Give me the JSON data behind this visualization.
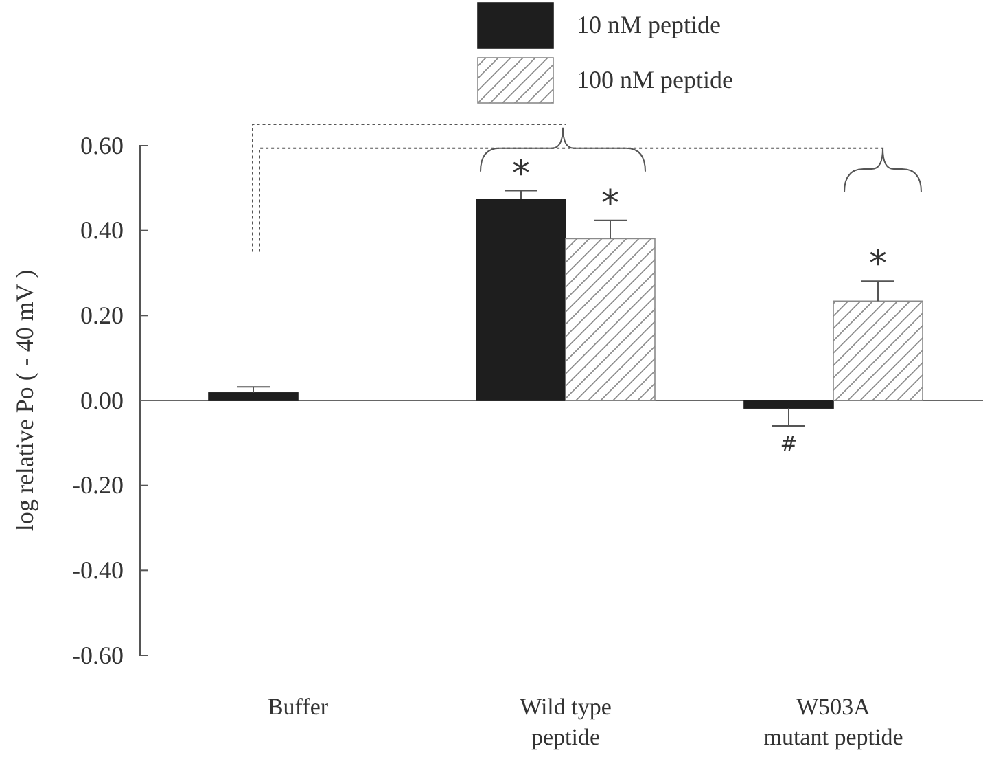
{
  "chart_data": {
    "type": "bar",
    "ylabel": "log relative Po ( - 40 mV )",
    "categories": [
      "Buffer",
      "Wild type peptide",
      "W503A mutant peptide"
    ],
    "series": [
      {
        "name": "10 nM peptide",
        "color": "#1e1e1e",
        "values": [
          0.018,
          0.474,
          -0.018
        ],
        "errors": [
          0.014,
          0.02,
          0.042
        ],
        "value_labels": [
          null,
          "*",
          "#"
        ]
      },
      {
        "name": "100 nM peptide",
        "color": "#8a8a8a",
        "values": [
          null,
          0.381,
          0.234
        ],
        "errors": [
          null,
          0.043,
          0.047
        ],
        "value_labels": [
          null,
          "*",
          "*"
        ]
      }
    ],
    "ylim": [
      -0.6,
      0.6
    ],
    "yticks": [
      {
        "value": -0.6,
        "label": "-0.60"
      },
      {
        "value": -0.4,
        "label": "-0.40"
      },
      {
        "value": -0.2,
        "label": "-0.20"
      },
      {
        "value": 0,
        "label": "0.00"
      },
      {
        "value": 0.2,
        "label": "0.20"
      },
      {
        "value": 0.4,
        "label": "0.40"
      },
      {
        "value": 0.6,
        "label": "0.60"
      }
    ],
    "legend": "top right"
  }
}
